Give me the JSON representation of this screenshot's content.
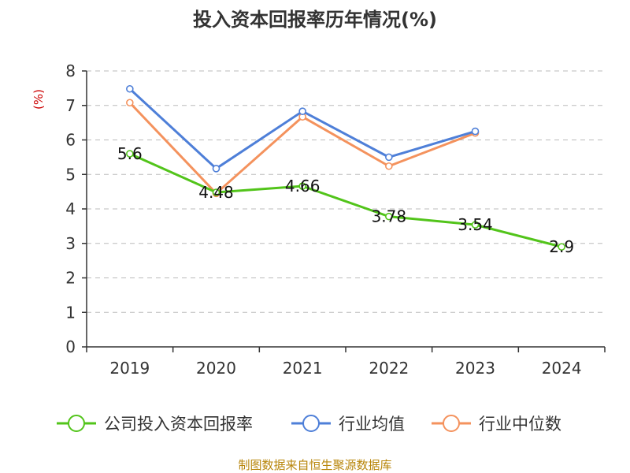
{
  "chart_data": {
    "type": "line",
    "title": "投入资本回报率历年情况(%)",
    "ylabel": "(%)",
    "xlabel": "",
    "categories": [
      "2019",
      "2020",
      "2021",
      "2022",
      "2023",
      "2024"
    ],
    "ylim": [
      0,
      8
    ],
    "yticks": [
      0,
      1,
      2,
      3,
      4,
      5,
      6,
      7,
      8
    ],
    "grid": true,
    "legend_position": "bottom",
    "series": [
      {
        "name": "公司投入资本回报率",
        "color": "#52c41a",
        "values": [
          5.6,
          4.48,
          4.66,
          3.78,
          3.54,
          2.9
        ],
        "show_labels": true
      },
      {
        "name": "行业均值",
        "color": "#4e7fd8",
        "values": [
          7.48,
          5.17,
          6.83,
          5.5,
          6.25,
          null
        ],
        "show_labels": false
      },
      {
        "name": "行业中位数",
        "color": "#f4925d",
        "values": [
          7.08,
          4.45,
          6.67,
          5.24,
          6.2,
          null
        ],
        "show_labels": false
      }
    ]
  },
  "footer": {
    "source": "制图数据来自恒生聚源数据库"
  }
}
